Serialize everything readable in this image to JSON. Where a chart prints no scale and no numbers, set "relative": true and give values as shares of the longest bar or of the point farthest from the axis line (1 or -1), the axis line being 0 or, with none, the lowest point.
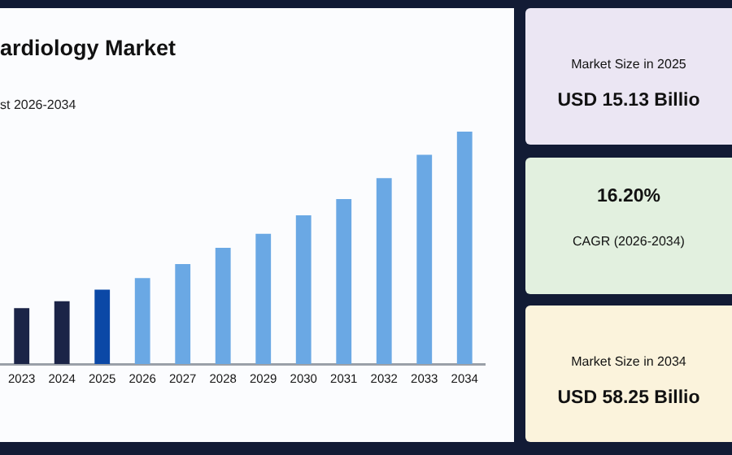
{
  "chart_data": [
    {
      "type": "bar",
      "title": "ardiology Market",
      "subtitle": "st 2026-2034",
      "relative": true,
      "grid": false,
      "legend": false,
      "categories": [
        "2023",
        "2024",
        "2025",
        "2026",
        "2027",
        "2028",
        "2029",
        "2030",
        "2031",
        "2032",
        "2033",
        "2034"
      ],
      "values": [
        0.24,
        0.27,
        0.32,
        0.37,
        0.43,
        0.5,
        0.56,
        0.64,
        0.71,
        0.8,
        0.9,
        1
      ],
      "colors": [
        "#1b2447",
        "#1b2447",
        "#0b48a6",
        "#6aa8e4",
        "#6aa8e4",
        "#6aa8e4",
        "#6aa8e4",
        "#6aa8e4",
        "#6aa8e4",
        "#6aa8e4",
        "#6aa8e4",
        "#6aa8e4"
      ]
    },
    {
      "type": "other",
      "annotations": [
        "Market Size in 2025",
        "USD 15.13 Billio",
        "16.20%",
        "CAGR (2026-2034)",
        "Market Size in 2034",
        "USD 58.25 Billio"
      ]
    }
  ]
}
